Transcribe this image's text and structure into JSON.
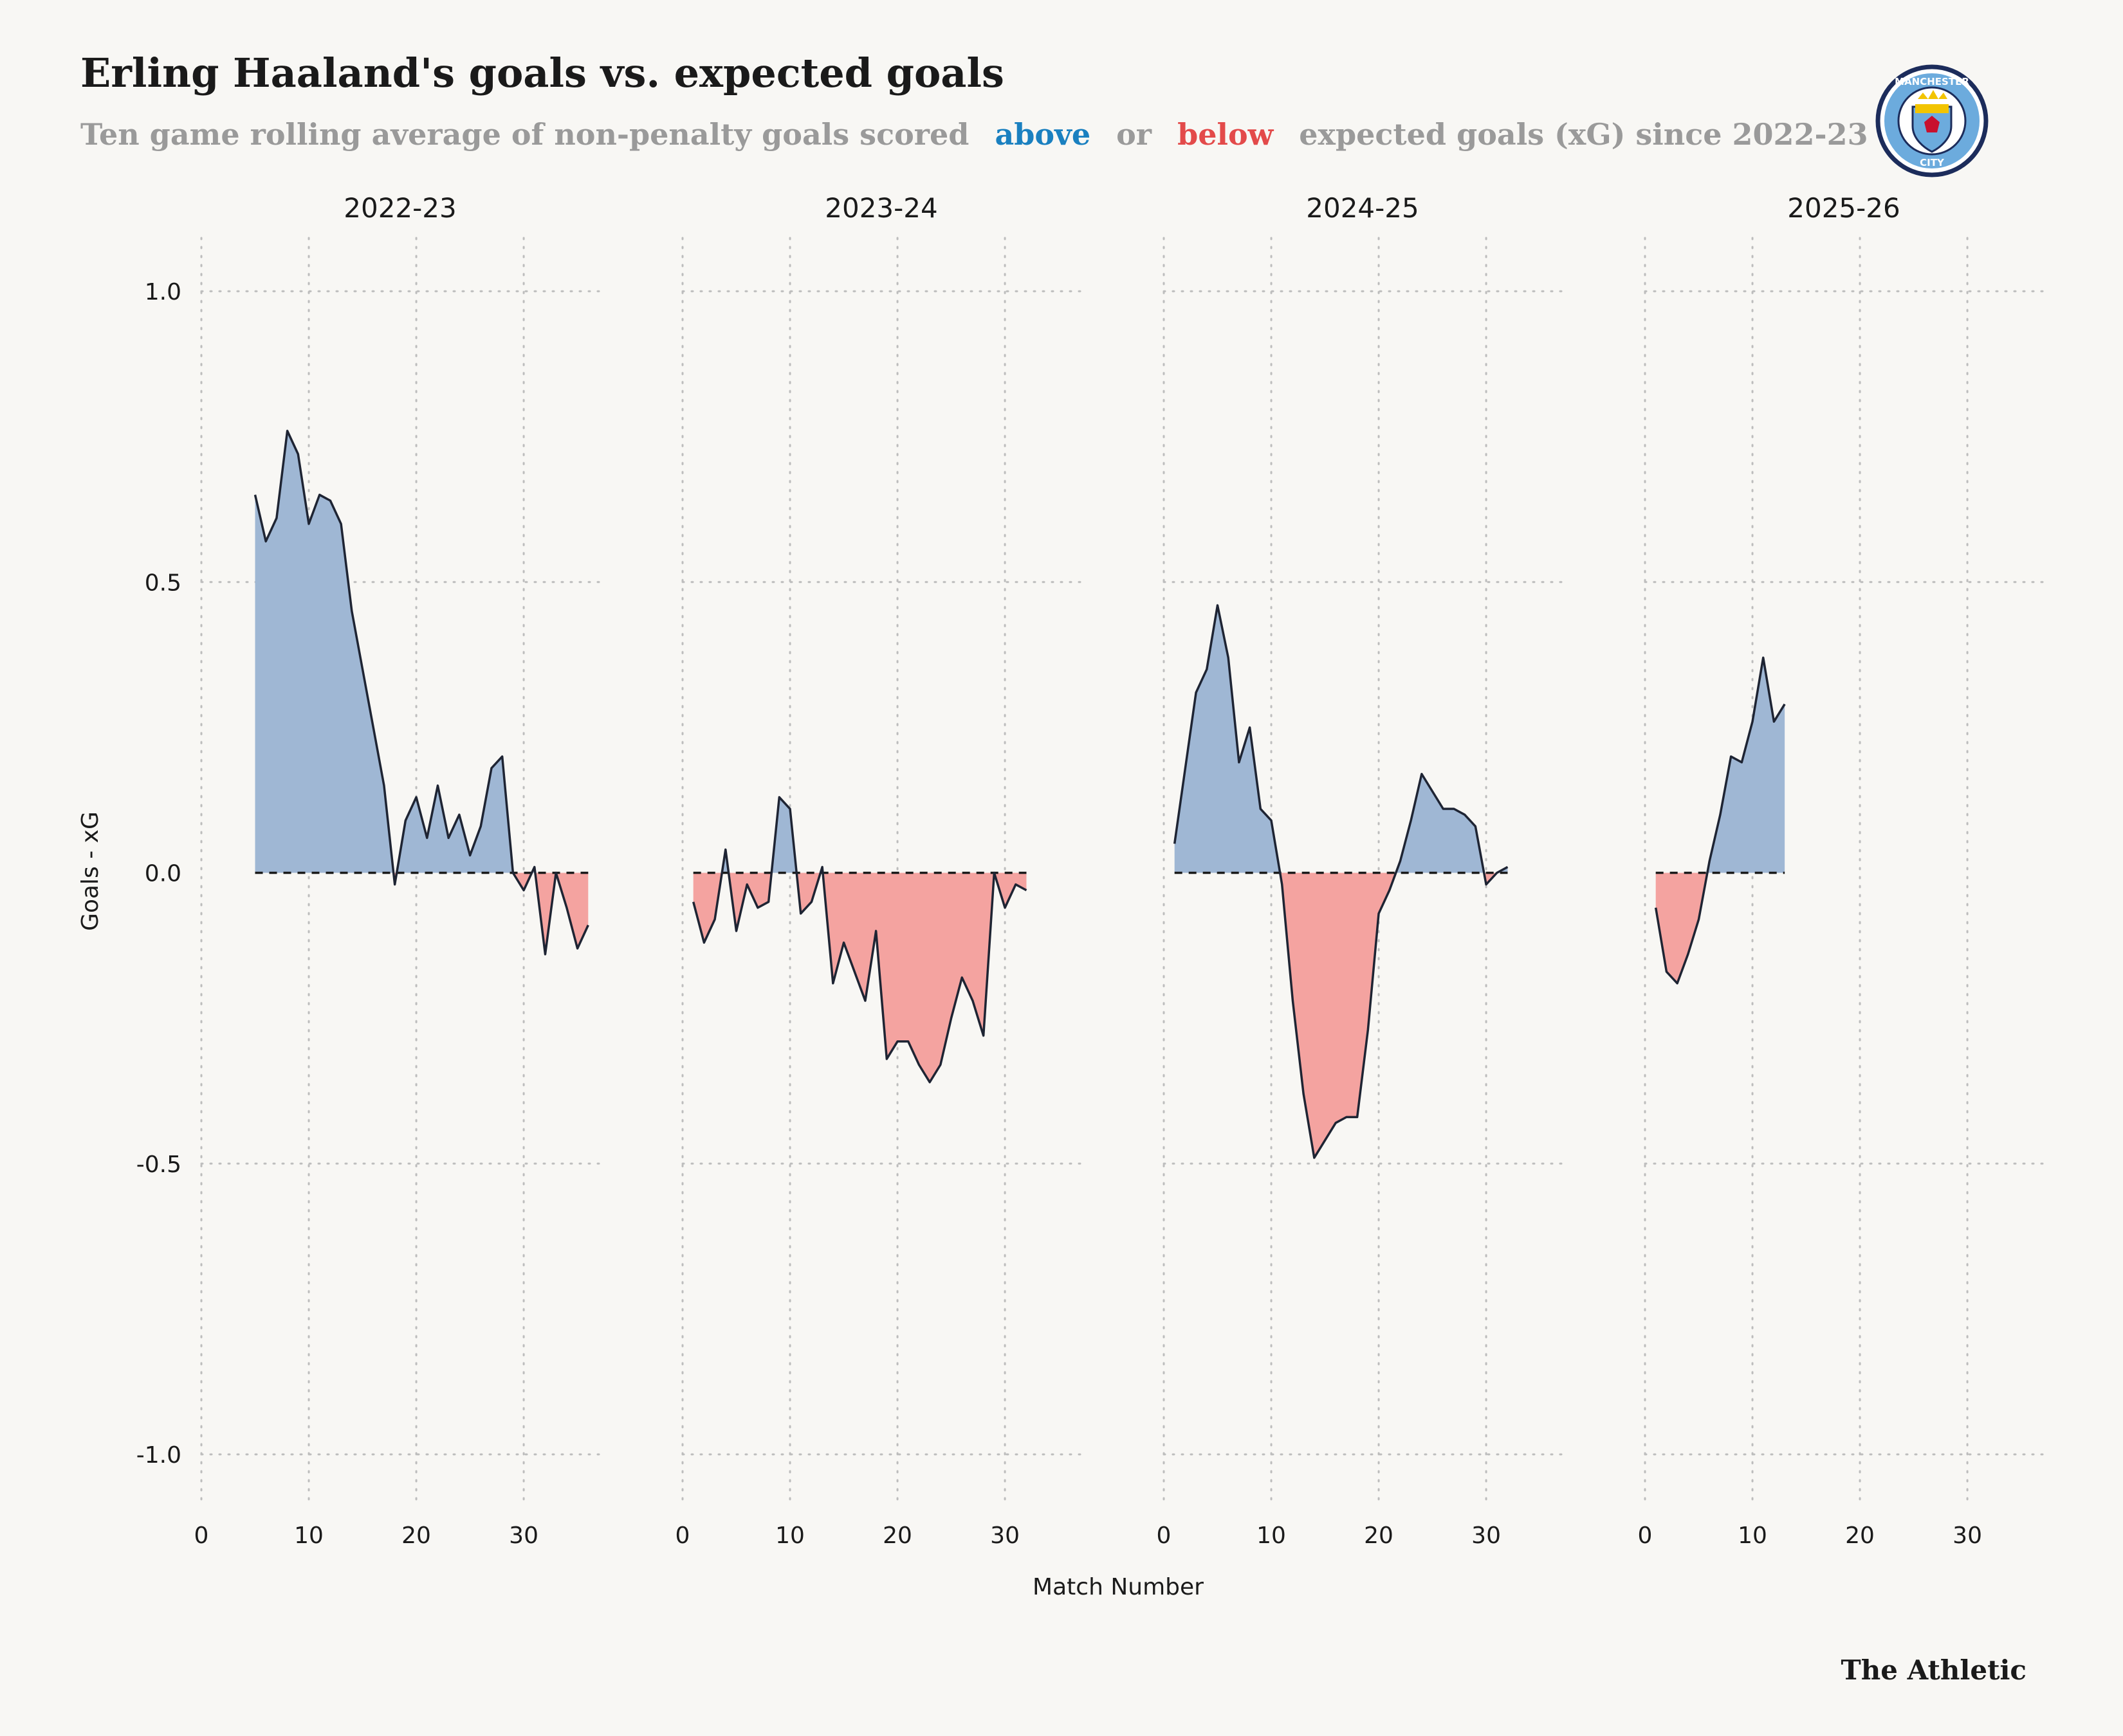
{
  "header": {
    "title": "Erling Haaland's goals vs. expected goals",
    "subtitle_part1": "Ten game rolling average of non-penalty goals scored",
    "subtitle_above": "above",
    "subtitle_or": "or",
    "subtitle_below": "below",
    "subtitle_part2": "expected goals (xG) since 2022-23"
  },
  "logo": {
    "top_text": "MANCHESTER",
    "bottom_text": "CITY",
    "colors": {
      "navy": "#1c2c5b",
      "sky": "#6cabdd",
      "gold": "#f2c400",
      "red": "#c8102e"
    }
  },
  "brand": "The Athletic",
  "colors": {
    "above": "#1a80c0",
    "below": "#e34a4a",
    "area_positive": "#9fb7d4",
    "area_negative": "#f4a3a0",
    "line": "#1e2433"
  },
  "chart_data": {
    "type": "area",
    "ylabel": "Goals - xG",
    "xlabel": "Match Number",
    "ylim": [
      -1.1,
      1.1
    ],
    "xlim": [
      0,
      37
    ],
    "yticks": [
      -1.0,
      -0.5,
      0.0,
      0.5,
      1.0
    ],
    "ytick_labels": [
      "-1.0",
      "-0.5",
      "0.0",
      "0.5",
      "1.0"
    ],
    "xticks": [
      0,
      10,
      20,
      30
    ],
    "xtick_labels": [
      "0",
      "10",
      "20",
      "30"
    ],
    "grid": true,
    "facets": [
      {
        "name": "2022-23",
        "points": [
          [
            5,
            0.65
          ],
          [
            6,
            0.57
          ],
          [
            7,
            0.61
          ],
          [
            8,
            0.76
          ],
          [
            9,
            0.72
          ],
          [
            10,
            0.6
          ],
          [
            11,
            0.65
          ],
          [
            12,
            0.64
          ],
          [
            13,
            0.6
          ],
          [
            14,
            0.45
          ],
          [
            15,
            0.35
          ],
          [
            16,
            0.25
          ],
          [
            17,
            0.15
          ],
          [
            18,
            -0.02
          ],
          [
            19,
            0.09
          ],
          [
            20,
            0.13
          ],
          [
            21,
            0.06
          ],
          [
            22,
            0.15
          ],
          [
            23,
            0.06
          ],
          [
            24,
            0.1
          ],
          [
            25,
            0.03
          ],
          [
            26,
            0.08
          ],
          [
            27,
            0.18
          ],
          [
            28,
            0.2
          ],
          [
            29,
            0.0
          ],
          [
            30,
            -0.03
          ],
          [
            31,
            0.01
          ],
          [
            32,
            -0.14
          ],
          [
            33,
            0.0
          ],
          [
            34,
            -0.06
          ],
          [
            35,
            -0.13
          ],
          [
            36,
            -0.09
          ]
        ]
      },
      {
        "name": "2023-24",
        "points": [
          [
            1,
            -0.05
          ],
          [
            2,
            -0.12
          ],
          [
            3,
            -0.08
          ],
          [
            4,
            0.04
          ],
          [
            5,
            -0.1
          ],
          [
            6,
            -0.02
          ],
          [
            7,
            -0.06
          ],
          [
            8,
            -0.05
          ],
          [
            9,
            0.13
          ],
          [
            10,
            0.11
          ],
          [
            11,
            -0.07
          ],
          [
            12,
            -0.05
          ],
          [
            13,
            0.01
          ],
          [
            14,
            -0.19
          ],
          [
            15,
            -0.12
          ],
          [
            16,
            -0.17
          ],
          [
            17,
            -0.22
          ],
          [
            18,
            -0.1
          ],
          [
            19,
            -0.32
          ],
          [
            20,
            -0.29
          ],
          [
            21,
            -0.29
          ],
          [
            22,
            -0.33
          ],
          [
            23,
            -0.36
          ],
          [
            24,
            -0.33
          ],
          [
            25,
            -0.25
          ],
          [
            26,
            -0.18
          ],
          [
            27,
            -0.22
          ],
          [
            28,
            -0.28
          ],
          [
            29,
            0.0
          ],
          [
            30,
            -0.06
          ],
          [
            31,
            -0.02
          ],
          [
            32,
            -0.03
          ]
        ]
      },
      {
        "name": "2024-25",
        "points": [
          [
            1,
            0.05
          ],
          [
            2,
            0.18
          ],
          [
            3,
            0.31
          ],
          [
            4,
            0.35
          ],
          [
            5,
            0.46
          ],
          [
            6,
            0.37
          ],
          [
            7,
            0.19
          ],
          [
            8,
            0.25
          ],
          [
            9,
            0.11
          ],
          [
            10,
            0.09
          ],
          [
            11,
            -0.02
          ],
          [
            12,
            -0.22
          ],
          [
            13,
            -0.38
          ],
          [
            14,
            -0.49
          ],
          [
            15,
            -0.46
          ],
          [
            16,
            -0.43
          ],
          [
            17,
            -0.42
          ],
          [
            18,
            -0.42
          ],
          [
            19,
            -0.27
          ],
          [
            20,
            -0.07
          ],
          [
            21,
            -0.03
          ],
          [
            22,
            0.02
          ],
          [
            23,
            0.09
          ],
          [
            24,
            0.17
          ],
          [
            25,
            0.14
          ],
          [
            26,
            0.11
          ],
          [
            27,
            0.11
          ],
          [
            28,
            0.1
          ],
          [
            29,
            0.08
          ],
          [
            30,
            -0.02
          ],
          [
            31,
            0.0
          ],
          [
            32,
            0.01
          ]
        ]
      },
      {
        "name": "2025-26",
        "points": [
          [
            1,
            -0.06
          ],
          [
            2,
            -0.17
          ],
          [
            3,
            -0.19
          ],
          [
            4,
            -0.14
          ],
          [
            5,
            -0.08
          ],
          [
            6,
            0.02
          ],
          [
            7,
            0.1
          ],
          [
            8,
            0.2
          ],
          [
            9,
            0.19
          ],
          [
            10,
            0.26
          ],
          [
            11,
            0.37
          ],
          [
            12,
            0.26
          ],
          [
            13,
            0.29
          ]
        ]
      }
    ]
  }
}
